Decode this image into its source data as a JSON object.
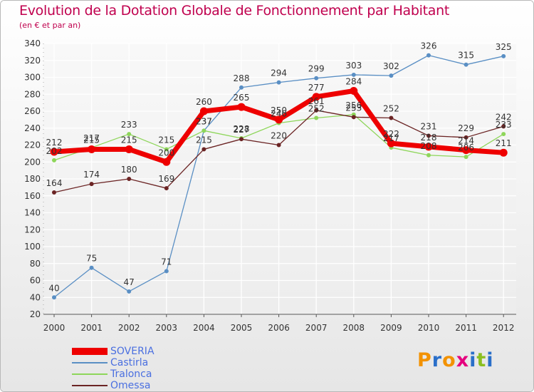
{
  "title": "Evolution de la Dotation Globale de Fonctionnement par Habitant",
  "subtitle": "(en € et par an)",
  "brand": {
    "letters": [
      "P",
      "r",
      "o",
      "x",
      "i",
      "t",
      "i"
    ],
    "colors": [
      "#f39200",
      "#2a6fc9",
      "#f39200",
      "#e5007e",
      "#2a6fc9",
      "#8bbf21",
      "#2a6fc9"
    ]
  },
  "chart_data": {
    "type": "line",
    "title": "Evolution de la Dotation Globale de Fonctionnement par Habitant",
    "subtitle": "(en € et par an)",
    "xlabel": "",
    "ylabel": "",
    "categories": [
      "2000",
      "2001",
      "2002",
      "2003",
      "2004",
      "2005",
      "2006",
      "2007",
      "2008",
      "2009",
      "2010",
      "2011",
      "2012"
    ],
    "ylim": [
      20,
      340
    ],
    "yticks": [
      20,
      40,
      60,
      80,
      100,
      120,
      140,
      160,
      180,
      200,
      220,
      240,
      260,
      280,
      300,
      320,
      340
    ],
    "grid": true,
    "legend_position": "bottom-left",
    "series": [
      {
        "name": "Castirla",
        "color": "#5a8fc4",
        "width": 1.3,
        "marker": 5,
        "values": [
          40,
          75,
          47,
          71,
          237,
          288,
          294,
          299,
          303,
          302,
          326,
          315,
          325
        ]
      },
      {
        "name": "Tralonca",
        "color": "#8ed65a",
        "width": 1.3,
        "marker": 5,
        "values": [
          202,
          217,
          233,
          215,
          237,
          228,
          246,
          252,
          256,
          217,
          208,
          206,
          233
        ]
      },
      {
        "name": "Omessa",
        "color": "#6b2424",
        "width": 1.3,
        "marker": 5,
        "values": [
          164,
          174,
          180,
          169,
          215,
          227,
          220,
          261,
          253,
          252,
          231,
          229,
          242
        ]
      },
      {
        "name": "SOVERIA",
        "color": "#ee0000",
        "width": 7,
        "marker": 11,
        "values": [
          212,
          215,
          215,
          200,
          260,
          265,
          250,
          277,
          284,
          222,
          218,
          214,
          211
        ]
      }
    ],
    "legend": [
      "SOVERIA",
      "Castirla",
      "Tralonca",
      "Omessa"
    ]
  }
}
